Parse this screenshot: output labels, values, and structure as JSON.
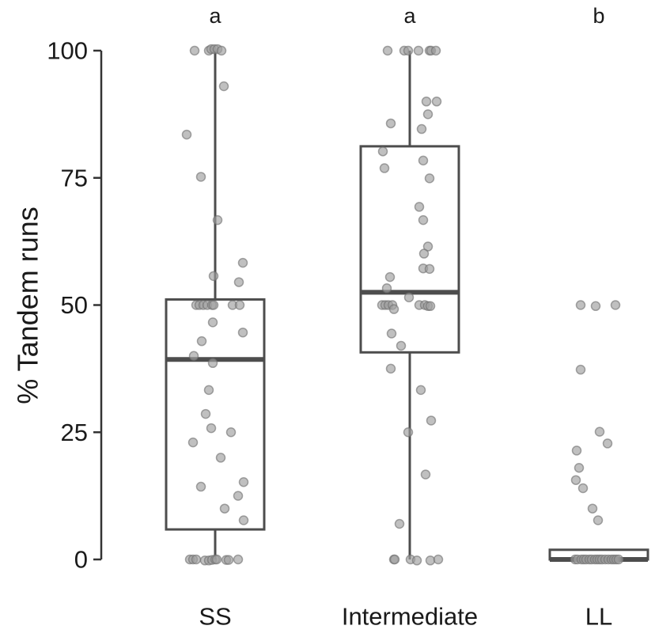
{
  "chart_data": {
    "type": "box",
    "ylabel": "% Tandem runs",
    "ylim": [
      0,
      100
    ],
    "yticks": [
      0,
      25,
      50,
      75,
      100
    ],
    "grid": false,
    "legend": "none",
    "colors": {
      "box_stroke": "#4d4d4d",
      "median": "#4d4d4d",
      "point_fill": "#9e9e9e",
      "point_stroke": "#6e6e6e"
    },
    "groups": [
      {
        "category": "SS",
        "significance": "a",
        "box": {
          "whisker_low": 0,
          "q1": 5.9,
          "median": 39.3,
          "q3": 51.1,
          "whisker_high": 100
        },
        "points": [
          {
            "x": -0.26,
            "y": 100
          },
          {
            "x": -0.08,
            "y": 100
          },
          {
            "x": -0.05,
            "y": 100.3
          },
          {
            "x": -0.01,
            "y": 100.3
          },
          {
            "x": 0.03,
            "y": 100.3
          },
          {
            "x": 0.08,
            "y": 100
          },
          {
            "x": 0.11,
            "y": 93
          },
          {
            "x": -0.36,
            "y": 83.5
          },
          {
            "x": -0.18,
            "y": 75.2
          },
          {
            "x": 0.03,
            "y": 66.7
          },
          {
            "x": 0.35,
            "y": 58.3
          },
          {
            "x": -0.02,
            "y": 55.7
          },
          {
            "x": 0.3,
            "y": 54.5
          },
          {
            "x": -0.24,
            "y": 50
          },
          {
            "x": -0.2,
            "y": 50
          },
          {
            "x": -0.15,
            "y": 50
          },
          {
            "x": -0.1,
            "y": 50
          },
          {
            "x": -0.04,
            "y": 50
          },
          {
            "x": -0.02,
            "y": 50
          },
          {
            "x": 0.22,
            "y": 50
          },
          {
            "x": 0.31,
            "y": 50
          },
          {
            "x": -0.03,
            "y": 46.6
          },
          {
            "x": 0.35,
            "y": 44.6
          },
          {
            "x": -0.17,
            "y": 42.9
          },
          {
            "x": -0.27,
            "y": 40
          },
          {
            "x": -0.03,
            "y": 38.6
          },
          {
            "x": -0.08,
            "y": 33.3
          },
          {
            "x": -0.12,
            "y": 28.6
          },
          {
            "x": -0.05,
            "y": 25.8
          },
          {
            "x": 0.2,
            "y": 25
          },
          {
            "x": -0.28,
            "y": 23
          },
          {
            "x": 0.07,
            "y": 20
          },
          {
            "x": -0.18,
            "y": 14.3
          },
          {
            "x": 0.36,
            "y": 15.2
          },
          {
            "x": 0.29,
            "y": 12.5
          },
          {
            "x": 0.12,
            "y": 10
          },
          {
            "x": 0.36,
            "y": 7.7
          },
          {
            "x": -0.32,
            "y": 0
          },
          {
            "x": -0.28,
            "y": 0
          },
          {
            "x": -0.24,
            "y": 0
          },
          {
            "x": -0.13,
            "y": -0.2
          },
          {
            "x": -0.08,
            "y": -0.2
          },
          {
            "x": -0.04,
            "y": -0.1
          },
          {
            "x": 0,
            "y": 0
          },
          {
            "x": 0.02,
            "y": 0
          },
          {
            "x": 0.14,
            "y": -0.1
          },
          {
            "x": 0.17,
            "y": -0.1
          },
          {
            "x": 0.29,
            "y": 0
          }
        ]
      },
      {
        "category": "Intermediate",
        "significance": "a",
        "box": {
          "whisker_low": 0,
          "q1": 40.7,
          "median": 52.5,
          "q3": 81.2,
          "whisker_high": 100
        },
        "points": [
          {
            "x": -0.28,
            "y": 100
          },
          {
            "x": -0.07,
            "y": 100
          },
          {
            "x": -0.02,
            "y": 100
          },
          {
            "x": 0.11,
            "y": 100
          },
          {
            "x": 0.25,
            "y": 100
          },
          {
            "x": 0.27,
            "y": 100
          },
          {
            "x": 0.33,
            "y": 100
          },
          {
            "x": 0.21,
            "y": 90
          },
          {
            "x": 0.34,
            "y": 90
          },
          {
            "x": 0.23,
            "y": 87.5
          },
          {
            "x": -0.24,
            "y": 85.7
          },
          {
            "x": 0.15,
            "y": 84.6
          },
          {
            "x": -0.34,
            "y": 80.2
          },
          {
            "x": -0.32,
            "y": 76.9
          },
          {
            "x": 0.17,
            "y": 78.4
          },
          {
            "x": 0.25,
            "y": 74.9
          },
          {
            "x": 0.12,
            "y": 69.3
          },
          {
            "x": 0.17,
            "y": 66.7
          },
          {
            "x": 0.23,
            "y": 61.5
          },
          {
            "x": 0.18,
            "y": 60.1
          },
          {
            "x": 0.17,
            "y": 57.2
          },
          {
            "x": 0.25,
            "y": 57.1
          },
          {
            "x": -0.25,
            "y": 55.5
          },
          {
            "x": -0.29,
            "y": 53.3
          },
          {
            "x": -0.01,
            "y": 51.5
          },
          {
            "x": -0.35,
            "y": 50
          },
          {
            "x": -0.31,
            "y": 50
          },
          {
            "x": -0.27,
            "y": 50
          },
          {
            "x": -0.22,
            "y": 50
          },
          {
            "x": 0.12,
            "y": 50
          },
          {
            "x": 0.19,
            "y": 50
          },
          {
            "x": 0.23,
            "y": 49.8
          },
          {
            "x": 0.26,
            "y": 49.8
          },
          {
            "x": -0.2,
            "y": 49.2
          },
          {
            "x": -0.23,
            "y": 44.4
          },
          {
            "x": -0.11,
            "y": 42
          },
          {
            "x": -0.24,
            "y": 37.5
          },
          {
            "x": 0.14,
            "y": 33.3
          },
          {
            "x": 0.27,
            "y": 27.3
          },
          {
            "x": -0.02,
            "y": 25
          },
          {
            "x": 0.2,
            "y": 16.7
          },
          {
            "x": -0.13,
            "y": 7
          },
          {
            "x": -0.2,
            "y": 0
          },
          {
            "x": -0.19,
            "y": 0
          },
          {
            "x": 0.01,
            "y": 0
          },
          {
            "x": 0.09,
            "y": -0.2
          },
          {
            "x": 0.26,
            "y": -0.2
          },
          {
            "x": 0.36,
            "y": 0
          }
        ]
      },
      {
        "category": "LL",
        "significance": "b",
        "box": {
          "whisker_low": 0,
          "q1": 0,
          "median": 0,
          "q3": 1.9,
          "whisker_high": 1.9
        },
        "points": [
          {
            "x": -0.23,
            "y": 50
          },
          {
            "x": -0.04,
            "y": 49.8
          },
          {
            "x": 0.21,
            "y": 50
          },
          {
            "x": -0.23,
            "y": 37.3
          },
          {
            "x": 0.01,
            "y": 25.1
          },
          {
            "x": 0.11,
            "y": 22.8
          },
          {
            "x": -0.28,
            "y": 21.4
          },
          {
            "x": -0.25,
            "y": 18
          },
          {
            "x": -0.29,
            "y": 15.6
          },
          {
            "x": -0.2,
            "y": 14
          },
          {
            "x": -0.08,
            "y": 10
          },
          {
            "x": -0.01,
            "y": 7.7
          },
          {
            "x": -0.3,
            "y": 0
          },
          {
            "x": -0.27,
            "y": 0
          },
          {
            "x": -0.22,
            "y": 0
          },
          {
            "x": -0.19,
            "y": 0
          },
          {
            "x": -0.16,
            "y": 0
          },
          {
            "x": -0.12,
            "y": 0
          },
          {
            "x": -0.09,
            "y": 0
          },
          {
            "x": -0.05,
            "y": 0
          },
          {
            "x": -0.02,
            "y": 0
          },
          {
            "x": 0.01,
            "y": 0
          },
          {
            "x": 0.04,
            "y": 0
          },
          {
            "x": 0.08,
            "y": 0
          },
          {
            "x": 0.12,
            "y": 0
          },
          {
            "x": 0.16,
            "y": 0
          },
          {
            "x": 0.19,
            "y": 0
          },
          {
            "x": 0.22,
            "y": 0
          },
          {
            "x": 0.25,
            "y": 0
          }
        ]
      }
    ]
  }
}
